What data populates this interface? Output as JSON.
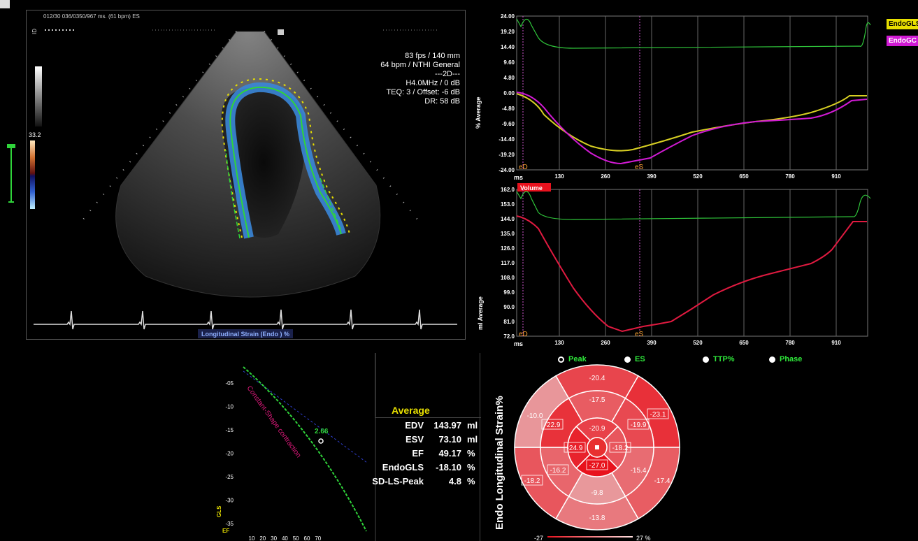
{
  "header": {
    "info_line": "012/30  036/0350/967 ms.  (61 bpm) ES",
    "imaging_params": [
      "83 fps / 140 mm",
      "64 bpm / NTHI General",
      "---2D---",
      "H4.0MHz / 0 dB",
      "TEQ: 3 / Offset: -6 dB",
      "DR: 58 dB"
    ],
    "scale_value": "33.2",
    "view_label": "Longitudinal Strain (Endo ) %"
  },
  "strain_chart": {
    "y_ticks": [
      "24.00",
      "19.20",
      "14.40",
      "9.60",
      "4.80",
      "0.00",
      "-4.80",
      "-9.60",
      "-14.40",
      "-19.20",
      "-24.00"
    ],
    "x_ticks": [
      "130",
      "260",
      "390",
      "520",
      "650",
      "780",
      "910"
    ],
    "ms_label": "ms",
    "ylabel": "% Average",
    "eD": "eD",
    "eS": "eS"
  },
  "volume_chart": {
    "title": "Volume",
    "y_ticks": [
      "162.0",
      "153.0",
      "144.0",
      "135.0",
      "126.0",
      "117.0",
      "108.0",
      "99.0",
      "90.0",
      "81.0",
      "72.0"
    ],
    "x_ticks": [
      "130",
      "260",
      "390",
      "520",
      "650",
      "780",
      "910"
    ],
    "ms_label": "ms",
    "ylabel": "ml Average",
    "eD": "eD",
    "eS": "eS"
  },
  "legend": {
    "item1": "EndoGLS",
    "item2": "EndoGC",
    "color1": "#e8e000",
    "color2": "#d11ad4"
  },
  "radios": {
    "peak": "Peak",
    "es": "ES",
    "ttp": "TTP%",
    "phase": "Phase",
    "selected": "peak"
  },
  "gls_ef_chart": {
    "y_ticks": [
      "-05",
      "-10",
      "-15",
      "-20",
      "-25",
      "-30",
      "-35"
    ],
    "x_ticks": [
      "10",
      "20",
      "30",
      "40",
      "50",
      "60",
      "70"
    ],
    "ylabel": "GLS",
    "xlabel": "EF",
    "annotation": "Constant-Shape contraction",
    "point_label": "2.66"
  },
  "stats": {
    "title": "Average",
    "rows": [
      {
        "label": "EDV",
        "value": "143.97",
        "unit": "ml"
      },
      {
        "label": "ESV",
        "value": "73.10",
        "unit": "ml"
      },
      {
        "label": "EF",
        "value": "49.17",
        "unit": "%"
      },
      {
        "label": "EndoGLS",
        "value": "-18.10",
        "unit": "%"
      },
      {
        "label": "SD-LS-Peak",
        "value": "4.8",
        "unit": "%"
      }
    ]
  },
  "bullseye": {
    "title": "Endo  Longitudinal Strain%",
    "scale_left": "-27",
    "scale_right": "27 %",
    "segments": {
      "basal_ant": "-20.4",
      "basal_antlat": "-23.1",
      "basal_inflat": "-17.4",
      "basal_inf": "-13.8",
      "basal_infsep": "-18.2",
      "basal_antsep": "-10.0",
      "mid_ant": "-17.5",
      "mid_antlat": "-19.9",
      "mid_inflat": "-15.4",
      "mid_inf": "-9.8",
      "mid_infsep": "-16.2",
      "mid_antsep": "-22.9",
      "apical_ant": "-20.9",
      "apical_lat": "-18.2",
      "apical_inf": "-27.0",
      "apical_sep": "-24.9"
    }
  }
}
